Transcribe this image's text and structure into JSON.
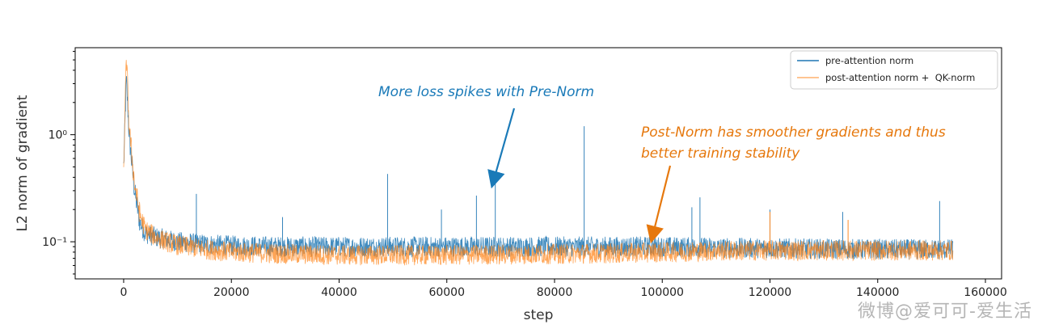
{
  "chart_data": {
    "type": "line",
    "xlabel": "step",
    "ylabel": "L2 norm of gradient",
    "y_scale": "log",
    "xlim": [
      -9000,
      163000
    ],
    "ylim": [
      0.045,
      6.5
    ],
    "x_ticks": [
      0,
      20000,
      40000,
      60000,
      80000,
      100000,
      120000,
      140000,
      160000
    ],
    "x_tick_labels": [
      "0",
      "20000",
      "40000",
      "60000",
      "80000",
      "100000",
      "120000",
      "140000",
      "160000"
    ],
    "y_ticks": [
      0.1,
      1.0
    ],
    "y_tick_labels": [
      "10⁻¹",
      "10⁰"
    ],
    "grid": false,
    "legend_position": "top-right",
    "series": [
      {
        "name": "pre-attention norm",
        "color": "#1f77b4",
        "x": [
          0,
          500,
          1000,
          2000,
          3000,
          4000,
          6000,
          8000,
          10000,
          15000,
          20000,
          30000,
          40000,
          50000,
          60000,
          70000,
          80000,
          90000,
          100000,
          110000,
          120000,
          130000,
          140000,
          150000,
          154000
        ],
        "y": [
          0.5,
          3.3,
          1.0,
          0.3,
          0.15,
          0.12,
          0.11,
          0.105,
          0.1,
          0.095,
          0.092,
          0.09,
          0.09,
          0.09,
          0.09,
          0.09,
          0.09,
          0.09,
          0.09,
          0.088,
          0.087,
          0.086,
          0.085,
          0.085,
          0.085
        ],
        "spikes": [
          {
            "x": 13500,
            "y": 0.28
          },
          {
            "x": 29500,
            "y": 0.17
          },
          {
            "x": 49000,
            "y": 0.43
          },
          {
            "x": 59000,
            "y": 0.2
          },
          {
            "x": 65500,
            "y": 0.27
          },
          {
            "x": 69000,
            "y": 0.37
          },
          {
            "x": 85500,
            "y": 1.2
          },
          {
            "x": 105500,
            "y": 0.21
          },
          {
            "x": 107000,
            "y": 0.26
          },
          {
            "x": 120000,
            "y": 0.2
          },
          {
            "x": 133500,
            "y": 0.19
          },
          {
            "x": 151500,
            "y": 0.24
          }
        ]
      },
      {
        "name": "post-attention norm +  QK-norm",
        "color": "#ff7f0e",
        "x": [
          0,
          500,
          1000,
          2000,
          3000,
          4000,
          6000,
          8000,
          10000,
          15000,
          20000,
          30000,
          40000,
          50000,
          60000,
          70000,
          80000,
          90000,
          100000,
          110000,
          120000,
          130000,
          140000,
          150000,
          154000
        ],
        "y": [
          0.5,
          5.5,
          1.2,
          0.35,
          0.18,
          0.13,
          0.11,
          0.1,
          0.093,
          0.085,
          0.08,
          0.077,
          0.075,
          0.075,
          0.075,
          0.076,
          0.077,
          0.078,
          0.08,
          0.082,
          0.083,
          0.083,
          0.083,
          0.083,
          0.083
        ],
        "spikes": [
          {
            "x": 120000,
            "y": 0.19
          },
          {
            "x": 134500,
            "y": 0.16
          }
        ]
      }
    ],
    "annotations": [
      {
        "text": "More loss spikes with Pre-Norm",
        "color": "#1a7ab8",
        "target_x": 68500,
        "target_y": 0.32
      },
      {
        "text": "Post-Norm has smoother gradients and thus",
        "color": "#e6780d",
        "target_x": 97000,
        "target_y": 0.095
      },
      {
        "text": "better training stability",
        "color": "#e6780d"
      }
    ]
  },
  "watermark": "微博@爱可可-爱生活"
}
